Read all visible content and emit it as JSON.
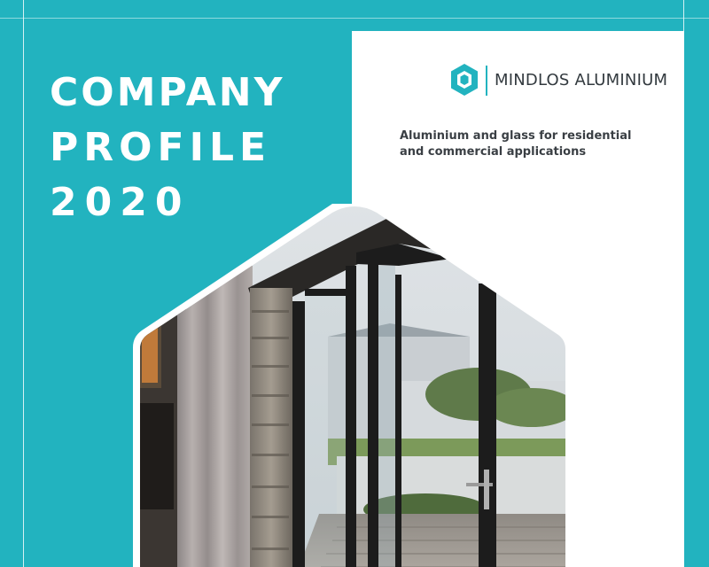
{
  "cover": {
    "title_line1": "COMPANY",
    "title_line2": "PROFILE",
    "title_line3": "2020",
    "tagline_line1": "Aluminium and glass for residential",
    "tagline_line2": "and commercial applications"
  },
  "brand": {
    "name": "MINDLOS ALUMINIUM",
    "logo_icon": "hexagon-icon"
  },
  "photo": {
    "subject": "interior-photo"
  },
  "colors": {
    "accent": "#22b3bf",
    "panel": "#ffffff",
    "title_text": "#ffffff",
    "body_text": "#3a3f44"
  }
}
